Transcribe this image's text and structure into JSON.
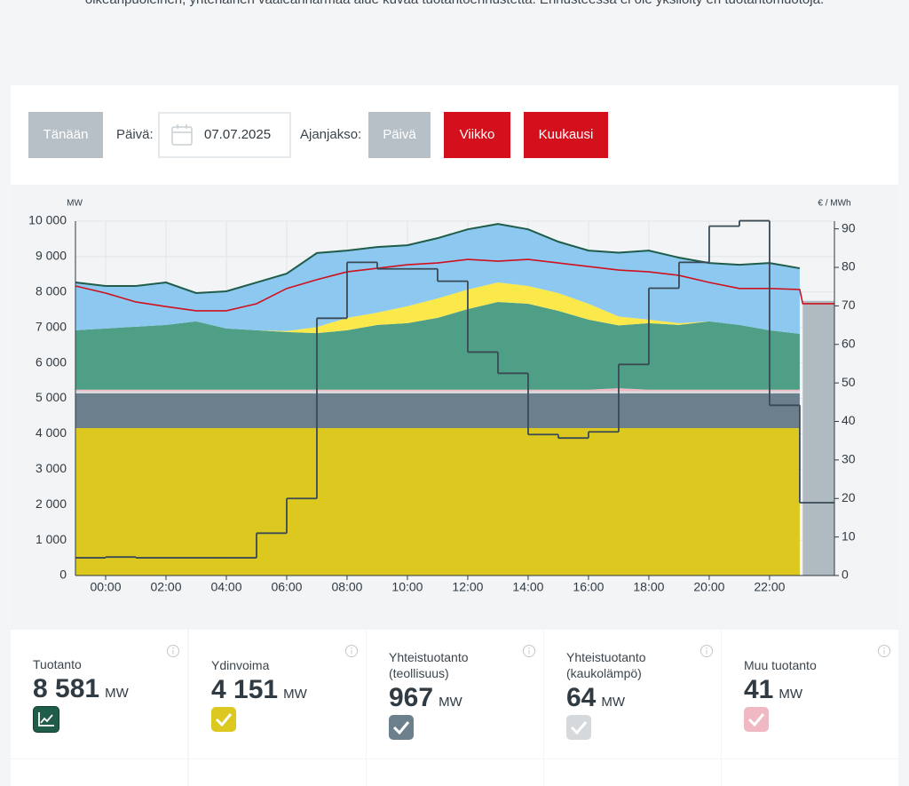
{
  "intro": "oikeanpuoleinen, yhtenäinen vaaleanharmaa alue kuvaa tuotantoennustetta. Ennusteessa ei ole yksilöity eri tuotantomuotoja.",
  "controls": {
    "today": "Tänään",
    "date_label": "Päivä:",
    "date": "07.07.2025",
    "period_label": "Ajanjakso:",
    "periods": [
      "Päivä",
      "Viikko",
      "Kuukausi"
    ]
  },
  "chart_data": {
    "type": "area",
    "stacked": true,
    "y_label": "MW",
    "y2_label": "€ / MWh",
    "x": [
      -1,
      0,
      1,
      2,
      3,
      4,
      5,
      6,
      7,
      8,
      9,
      10,
      11,
      12,
      13,
      14,
      15,
      16,
      17,
      18,
      19,
      20,
      21,
      22,
      23
    ],
    "xlim": [
      -1,
      24.15
    ],
    "xticks": [
      {
        "value": 0,
        "label": "00:00"
      },
      {
        "value": 2,
        "label": "02:00"
      },
      {
        "value": 4,
        "label": "04:00"
      },
      {
        "value": 6,
        "label": "06:00"
      },
      {
        "value": 8,
        "label": "08:00"
      },
      {
        "value": 10,
        "label": "10:00"
      },
      {
        "value": 12,
        "label": "12:00"
      },
      {
        "value": 14,
        "label": "14:00"
      },
      {
        "value": 16,
        "label": "16:00"
      },
      {
        "value": 18,
        "label": "18:00"
      },
      {
        "value": 20,
        "label": "20:00"
      },
      {
        "value": 22,
        "label": "22:00"
      }
    ],
    "ylim": [
      0,
      10000
    ],
    "yticks": [
      0,
      {
        "value": 1000,
        "label": "1 000"
      },
      {
        "value": 2000,
        "label": "2 000"
      },
      {
        "value": 3000,
        "label": "3 000"
      },
      {
        "value": 4000,
        "label": "4 000"
      },
      {
        "value": 5000,
        "label": "5 000"
      },
      {
        "value": 6000,
        "label": "6 000"
      },
      {
        "value": 7000,
        "label": "7 000"
      },
      {
        "value": 8000,
        "label": "8 000"
      },
      {
        "value": 9000,
        "label": "9 000"
      },
      {
        "value": 10000,
        "label": "10 000"
      }
    ],
    "y2lim": [
      0,
      92
    ],
    "y2ticks": [
      0,
      10,
      20,
      30,
      40,
      50,
      60,
      70,
      80,
      90
    ],
    "grid": true,
    "total_line_color": "#1f5c4a",
    "series": [
      {
        "type": "area",
        "color": "#dcc81f",
        "values": [
          4160,
          4160,
          4160,
          4160,
          4160,
          4160,
          4160,
          4160,
          4160,
          4160,
          4160,
          4160,
          4160,
          4160,
          4160,
          4160,
          4160,
          4160,
          4160,
          4160,
          4160,
          4160,
          4160,
          4160,
          4160
        ]
      },
      {
        "type": "area",
        "color": "#6b7f8c",
        "values": [
          980,
          980,
          980,
          980,
          980,
          980,
          980,
          980,
          980,
          980,
          980,
          980,
          980,
          980,
          980,
          980,
          980,
          980,
          980,
          980,
          980,
          980,
          980,
          980,
          980
        ]
      },
      {
        "type": "area",
        "color": "#d5d9dc",
        "values": [
          64,
          64,
          64,
          64,
          64,
          64,
          64,
          64,
          64,
          64,
          64,
          64,
          64,
          64,
          64,
          64,
          64,
          64,
          64,
          64,
          64,
          64,
          64,
          64,
          64
        ]
      },
      {
        "type": "area",
        "color": "#f0b8c2",
        "values": [
          41,
          41,
          41,
          41,
          41,
          41,
          41,
          41,
          41,
          41,
          41,
          41,
          41,
          41,
          41,
          41,
          41,
          41,
          80,
          41,
          41,
          41,
          41,
          41,
          41
        ]
      },
      {
        "type": "area",
        "color": "#4f9e86",
        "values": [
          1675,
          1725,
          1775,
          1825,
          1925,
          1725,
          1675,
          1625,
          1595,
          1675,
          1825,
          1875,
          2025,
          2275,
          2475,
          2425,
          2225,
          1975,
          1775,
          1875,
          1825,
          1925,
          1825,
          1675,
          1575
        ]
      },
      {
        "type": "area",
        "color": "#fbe94c",
        "values": [
          0,
          0,
          0,
          0,
          0,
          0,
          0,
          30,
          170,
          350,
          350,
          480,
          550,
          550,
          550,
          500,
          500,
          450,
          250,
          100,
          50,
          0,
          0,
          0,
          0
        ]
      },
      {
        "type": "area",
        "color": "#8cc8f0",
        "values": [
          1350,
          1200,
          1150,
          1200,
          800,
          1050,
          1350,
          1620,
          2090,
          1900,
          1850,
          1720,
          1700,
          1700,
          1650,
          1600,
          1450,
          1500,
          1800,
          1950,
          1850,
          1650,
          1700,
          1900,
          1850
        ]
      },
      {
        "type": "line",
        "color": "#d0111d",
        "x": [
          -1,
          0,
          1,
          2,
          3,
          4,
          5,
          6,
          7,
          8,
          9,
          10,
          11,
          12,
          13,
          14,
          15,
          16,
          17,
          18,
          19,
          20,
          21,
          22,
          23,
          23.1,
          24.15
        ],
        "values": [
          8170,
          7970,
          7720,
          7590,
          7470,
          7470,
          7670,
          8100,
          8350,
          8570,
          8670,
          8770,
          8820,
          8920,
          8870,
          8920,
          8820,
          8720,
          8620,
          8570,
          8470,
          8270,
          8100,
          8100,
          8070,
          7670,
          7670
        ]
      },
      {
        "type": "step",
        "axis": "y2",
        "color": "#3a4a55",
        "values": [
          4.6,
          4.8,
          4.6,
          4.6,
          4.6,
          4.6,
          11,
          20,
          66.8,
          81.3,
          79.6,
          79.6,
          76.4,
          58,
          52.5,
          36.6,
          35.7,
          37.3,
          54.8,
          74.6,
          81.3,
          90.7,
          92.1,
          44.2,
          18.9
        ]
      }
    ],
    "forecast": {
      "color": "#b0bac1",
      "x": [
        23.1,
        24.15
      ],
      "values": [
        7750,
        7750
      ]
    }
  },
  "cards": [
    {
      "title": "Tuotanto",
      "value": "8 581",
      "unit": "MW"
    },
    {
      "title": "Ydinvoima",
      "value": "4 151",
      "unit": "MW"
    },
    {
      "title": "Yhteistuotanto (teollisuus)",
      "value": "967",
      "unit": "MW"
    },
    {
      "title": "Yhteistuotanto (kaukolämpö)",
      "value": "64",
      "unit": "MW"
    },
    {
      "title": "Muu tuotanto",
      "value": "41",
      "unit": "MW"
    }
  ]
}
